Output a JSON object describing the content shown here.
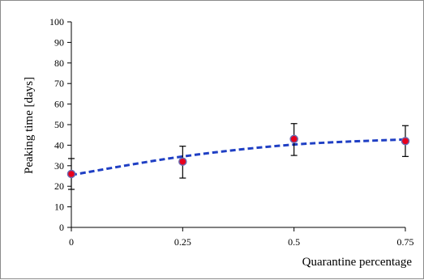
{
  "chart_data": {
    "type": "scatter",
    "title": "",
    "xlabel": "Quarantine percentage",
    "ylabel": "Peaking time [days]",
    "x": [
      0,
      0.25,
      0.5,
      0.75
    ],
    "x_tick_labels": [
      "0",
      "0.25",
      "0.5",
      "0.75"
    ],
    "y_ticks": [
      0,
      10,
      20,
      30,
      40,
      50,
      60,
      70,
      80,
      90,
      100
    ],
    "y_tick_labels": [
      "0",
      "10",
      "20",
      "30",
      "40",
      "50",
      "60",
      "70",
      "80",
      "90",
      "100"
    ],
    "xlim": [
      0,
      0.75
    ],
    "ylim": [
      0,
      100
    ],
    "grid": false,
    "legend": "none",
    "series": [
      {
        "values": [
          26,
          32,
          43,
          42
        ],
        "error_low": [
          18.5,
          24,
          35,
          34.5
        ],
        "error_high": [
          33.5,
          39.5,
          50.5,
          49.5
        ],
        "marker_color": "#e8001c",
        "marker_edge_color": "#6a6ab0"
      }
    ],
    "trendline": {
      "style": "dashed",
      "color": "#1f3fc4",
      "x": [
        0,
        0.25,
        0.5,
        0.75
      ],
      "values": [
        25.5,
        34.5,
        40.3,
        42.8
      ]
    },
    "colors": {
      "axis": "#000000",
      "frame": "#8c8c8c"
    }
  }
}
